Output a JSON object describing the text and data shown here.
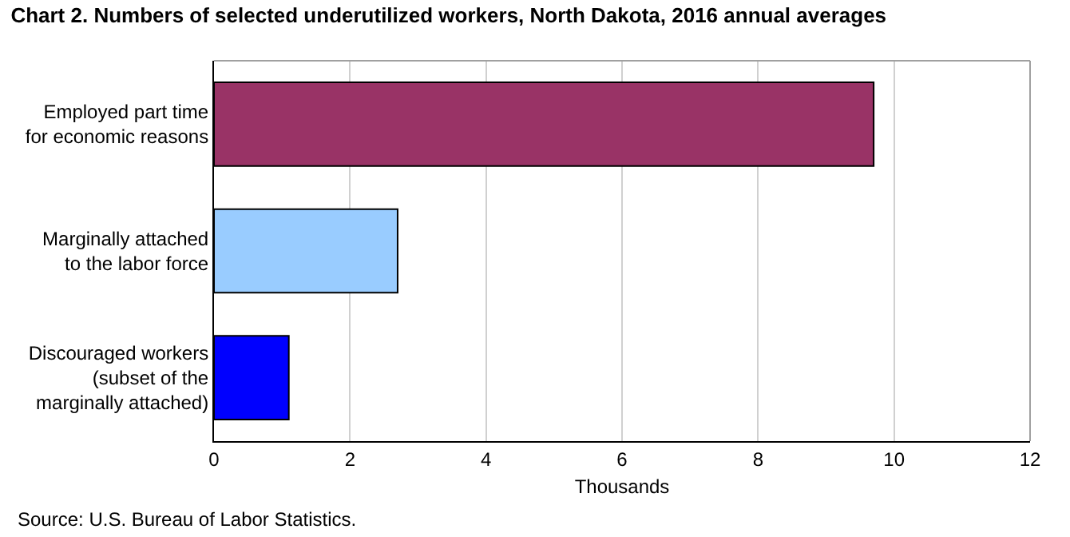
{
  "chart_data": {
    "type": "bar",
    "orientation": "horizontal",
    "title": "Chart 2. Numbers of selected underutilized workers, North Dakota, 2016 annual averages",
    "categories": [
      "Employed part time\nfor economic reasons",
      "Marginally attached\nto the labor force",
      "Discouraged workers\n(subset of the\nmarginally attached)"
    ],
    "values": [
      9.7,
      2.7,
      1.1
    ],
    "colors": [
      "#993366",
      "#99ccff",
      "#0000ff"
    ],
    "xlabel": "Thousands",
    "xlim": [
      0,
      12
    ],
    "xticks": [
      0,
      2,
      4,
      6,
      8,
      10,
      12
    ],
    "grid": "x",
    "annotations": [
      "Source: U.S. Bureau of Labor Statistics."
    ]
  }
}
